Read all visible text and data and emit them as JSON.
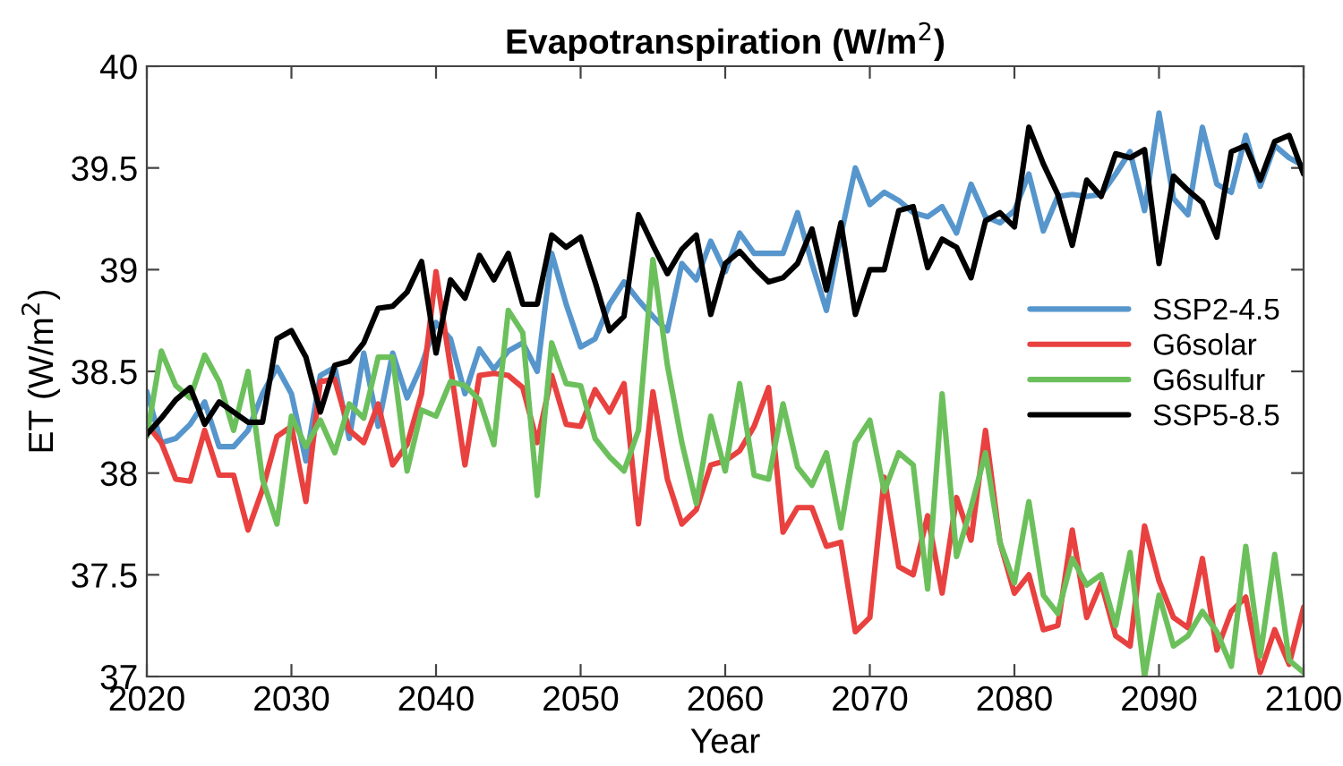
{
  "chart_data": {
    "type": "line",
    "title": "Evapotranspiration (W/m$^{2}$)",
    "xlabel": "Year",
    "ylabel": "ET (W/m$^{2}$)",
    "x": [
      2020,
      2021,
      2022,
      2023,
      2024,
      2025,
      2026,
      2027,
      2028,
      2029,
      2030,
      2031,
      2032,
      2033,
      2034,
      2035,
      2036,
      2037,
      2038,
      2039,
      2040,
      2041,
      2042,
      2043,
      2044,
      2045,
      2046,
      2047,
      2048,
      2049,
      2050,
      2051,
      2052,
      2053,
      2054,
      2055,
      2056,
      2057,
      2058,
      2059,
      2060,
      2061,
      2062,
      2063,
      2064,
      2065,
      2066,
      2067,
      2068,
      2069,
      2070,
      2071,
      2072,
      2073,
      2074,
      2075,
      2076,
      2077,
      2078,
      2079,
      2080,
      2081,
      2082,
      2083,
      2084,
      2085,
      2086,
      2087,
      2088,
      2089,
      2090,
      2091,
      2092,
      2093,
      2094,
      2095,
      2096,
      2097,
      2098,
      2099,
      2100
    ],
    "series": [
      {
        "name": "SSP2-4.5",
        "color": "#5696cc",
        "values": [
          38.4,
          38.15,
          38.17,
          38.24,
          38.35,
          38.13,
          38.13,
          38.21,
          38.39,
          38.52,
          38.39,
          38.06,
          38.48,
          38.52,
          38.17,
          38.59,
          38.23,
          38.59,
          38.37,
          38.53,
          38.74,
          38.66,
          38.39,
          38.61,
          38.51,
          38.6,
          38.64,
          38.5,
          39.08,
          38.83,
          38.62,
          38.66,
          38.83,
          38.94,
          38.85,
          38.77,
          38.7,
          39.03,
          38.95,
          39.14,
          38.99,
          39.18,
          39.08,
          39.08,
          39.08,
          39.28,
          39.03,
          38.8,
          39.17,
          39.5,
          39.32,
          39.38,
          39.34,
          39.28,
          39.26,
          39.31,
          39.18,
          39.42,
          39.26,
          39.23,
          39.29,
          39.47,
          39.19,
          39.36,
          39.37,
          39.36,
          39.37,
          39.47,
          39.58,
          39.29,
          39.77,
          39.35,
          39.27,
          39.7,
          39.42,
          39.38,
          39.66,
          39.41,
          39.61,
          39.55,
          39.51
        ]
      },
      {
        "name": "G6solar",
        "color": "#e8413f",
        "values": [
          38.24,
          38.15,
          37.97,
          37.96,
          38.21,
          37.99,
          37.99,
          37.72,
          37.92,
          38.18,
          38.23,
          37.86,
          38.45,
          38.46,
          38.21,
          38.15,
          38.34,
          38.04,
          38.14,
          38.39,
          38.99,
          38.52,
          38.04,
          38.48,
          38.49,
          38.48,
          38.42,
          38.15,
          38.48,
          38.24,
          38.23,
          38.41,
          38.3,
          38.44,
          37.75,
          38.4,
          37.97,
          37.75,
          37.82,
          38.04,
          38.06,
          38.11,
          38.23,
          38.42,
          37.71,
          37.83,
          37.83,
          37.64,
          37.66,
          37.22,
          37.29,
          37.98,
          37.54,
          37.5,
          37.79,
          37.41,
          37.88,
          37.67,
          38.21,
          37.66,
          37.41,
          37.5,
          37.23,
          37.25,
          37.72,
          37.29,
          37.46,
          37.2,
          37.15,
          37.74,
          37.47,
          37.29,
          37.24,
          37.58,
          37.13,
          37.32,
          37.39,
          37.02,
          37.23,
          37.06,
          37.34
        ]
      },
      {
        "name": "G6sulfur",
        "color": "#6cc05c",
        "values": [
          38.18,
          38.6,
          38.43,
          38.37,
          38.58,
          38.45,
          38.21,
          38.5,
          37.97,
          37.75,
          38.28,
          38.13,
          38.26,
          38.1,
          38.34,
          38.27,
          38.57,
          38.57,
          38.01,
          38.31,
          38.28,
          38.45,
          38.43,
          38.36,
          38.14,
          38.8,
          38.69,
          37.89,
          38.64,
          38.44,
          38.43,
          38.17,
          38.08,
          38.01,
          38.21,
          39.05,
          38.53,
          38.15,
          37.85,
          38.28,
          38.01,
          38.44,
          37.99,
          37.97,
          38.34,
          38.03,
          37.94,
          38.1,
          37.73,
          38.15,
          38.26,
          37.91,
          38.1,
          38.04,
          37.43,
          38.39,
          37.59,
          37.83,
          38.1,
          37.66,
          37.46,
          37.86,
          37.4,
          37.31,
          37.58,
          37.45,
          37.5,
          37.25,
          37.61,
          37.0,
          37.4,
          37.15,
          37.2,
          37.32,
          37.22,
          37.05,
          37.64,
          37.1,
          37.6,
          37.08,
          37.02
        ]
      },
      {
        "name": "SSP5-8.5",
        "color": "#000000",
        "values": [
          38.19,
          38.27,
          38.36,
          38.42,
          38.24,
          38.35,
          38.3,
          38.25,
          38.25,
          38.66,
          38.7,
          38.57,
          38.3,
          38.53,
          38.55,
          38.64,
          38.81,
          38.82,
          38.89,
          39.04,
          38.59,
          38.95,
          38.86,
          39.07,
          38.95,
          39.08,
          38.83,
          38.83,
          39.17,
          39.11,
          39.16,
          38.94,
          38.7,
          38.77,
          39.27,
          39.12,
          38.98,
          39.1,
          39.17,
          38.78,
          39.03,
          39.09,
          39.01,
          38.94,
          38.96,
          39.03,
          39.2,
          38.9,
          39.23,
          38.78,
          39.0,
          39.0,
          39.29,
          39.31,
          39.01,
          39.15,
          39.11,
          38.96,
          39.24,
          39.28,
          39.21,
          39.7,
          39.52,
          39.37,
          39.12,
          39.44,
          39.36,
          39.57,
          39.55,
          39.59,
          39.03,
          39.46,
          39.39,
          39.33,
          39.16,
          39.58,
          39.61,
          39.44,
          39.63,
          39.66,
          39.47
        ]
      }
    ],
    "xlim": [
      2020,
      2100
    ],
    "xticks": [
      2020,
      2030,
      2040,
      2050,
      2060,
      2070,
      2080,
      2090,
      2100
    ],
    "ylim": [
      37,
      40
    ],
    "yticks": [
      37,
      37.5,
      38,
      38.5,
      39,
      39.5,
      40
    ],
    "grid": false,
    "legend": "right"
  }
}
